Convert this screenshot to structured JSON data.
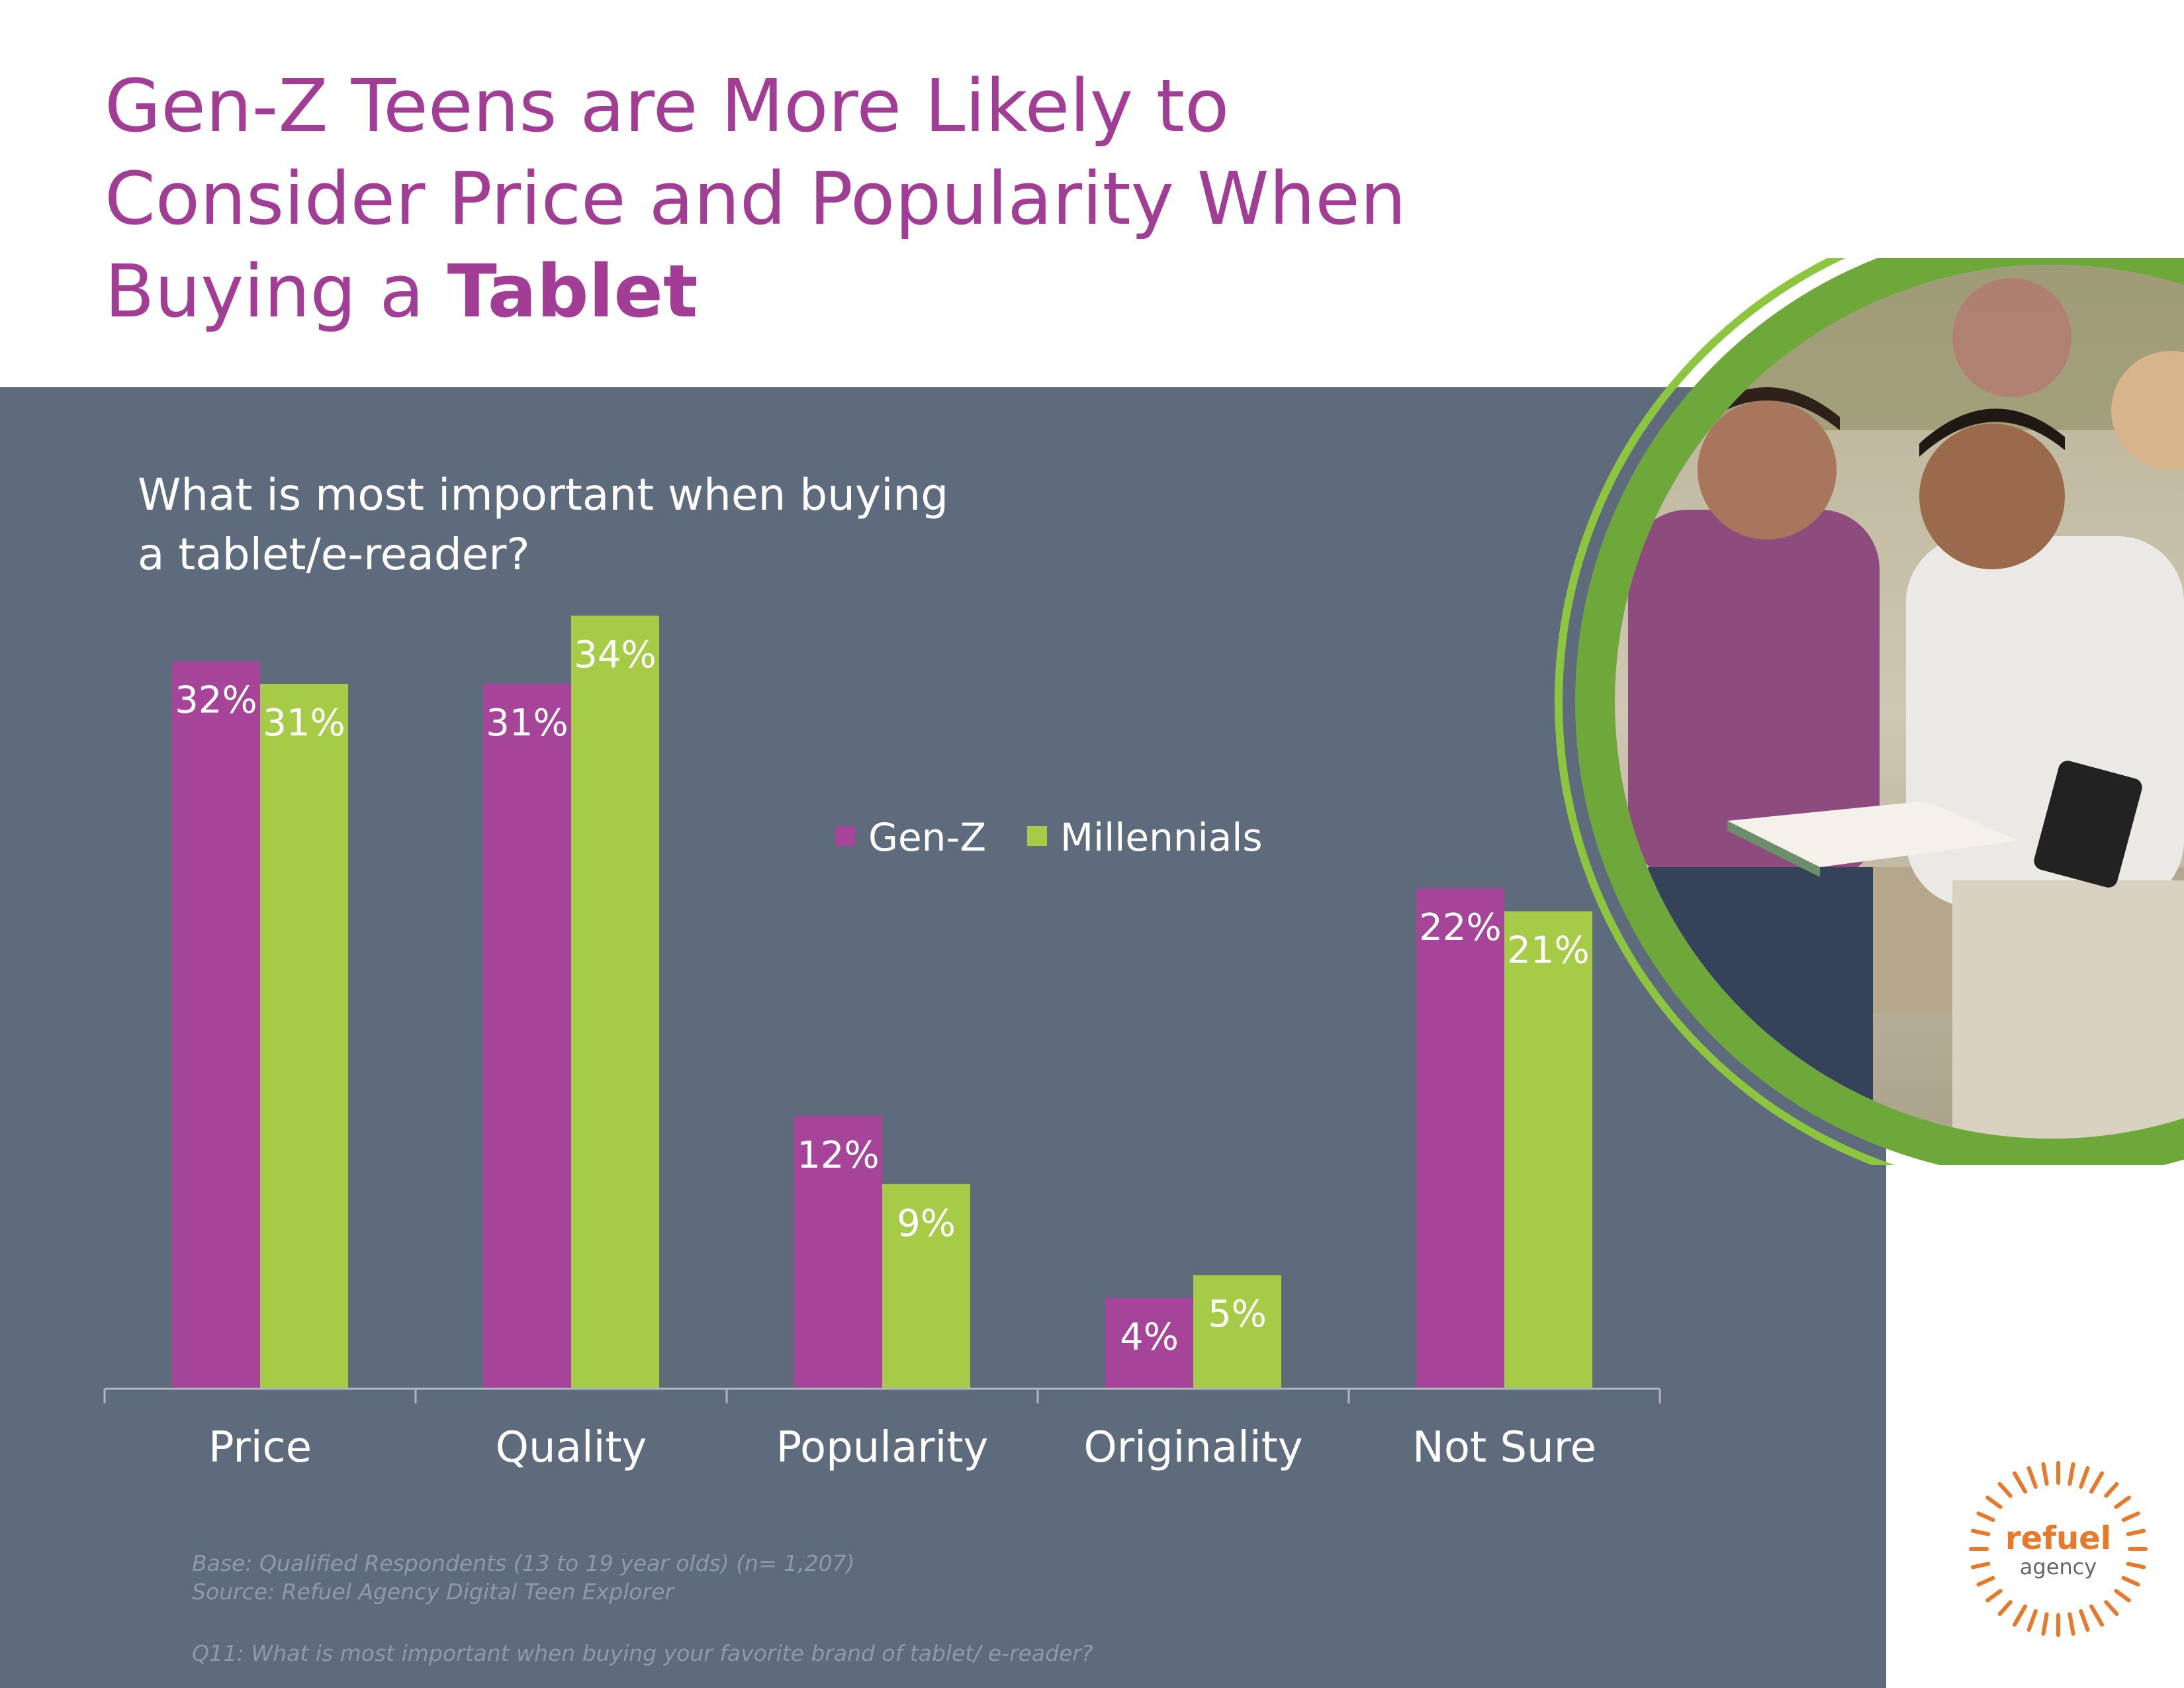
{
  "header": {
    "title_plain": "Gen-Z Teens are More Likely to Consider Price and Popularity When Buying a",
    "title_bold": "Tablet"
  },
  "chart_data": {
    "type": "bar",
    "title": "What is most important when buying a tablet/e-reader?",
    "categories": [
      "Price",
      "Quality",
      "Popularity",
      "Originality",
      "Not Sure"
    ],
    "series": [
      {
        "name": "Gen-Z",
        "values": [
          32,
          31,
          12,
          4,
          22
        ],
        "labels": [
          "32%",
          "31%",
          "12%",
          "4%",
          "22%"
        ],
        "color": "#a6449a"
      },
      {
        "name": "Millennials",
        "values": [
          31,
          34,
          9,
          5,
          21
        ],
        "labels": [
          "31%",
          "34%",
          "9%",
          "5%",
          "21%"
        ],
        "color": "#a6cc47"
      }
    ],
    "ylim": [
      0,
      34
    ],
    "grid": false,
    "legend": "center-top",
    "value_suffix": "%"
  },
  "footnotes": {
    "base": "Base: Qualified Respondents (13 to 19 year olds)  (n= 1,207)",
    "source": "Source: Refuel Agency Digital Teen Explorer",
    "question": "Q11: What is most important when buying your favorite brand of tablet/ e-reader?"
  },
  "logo": {
    "line1": "refuel",
    "line2": "agency",
    "accent": "#e8782a"
  },
  "colors": {
    "title": "#a13d95",
    "panel": "#5d6b7d",
    "ring": "#8cc63f"
  }
}
